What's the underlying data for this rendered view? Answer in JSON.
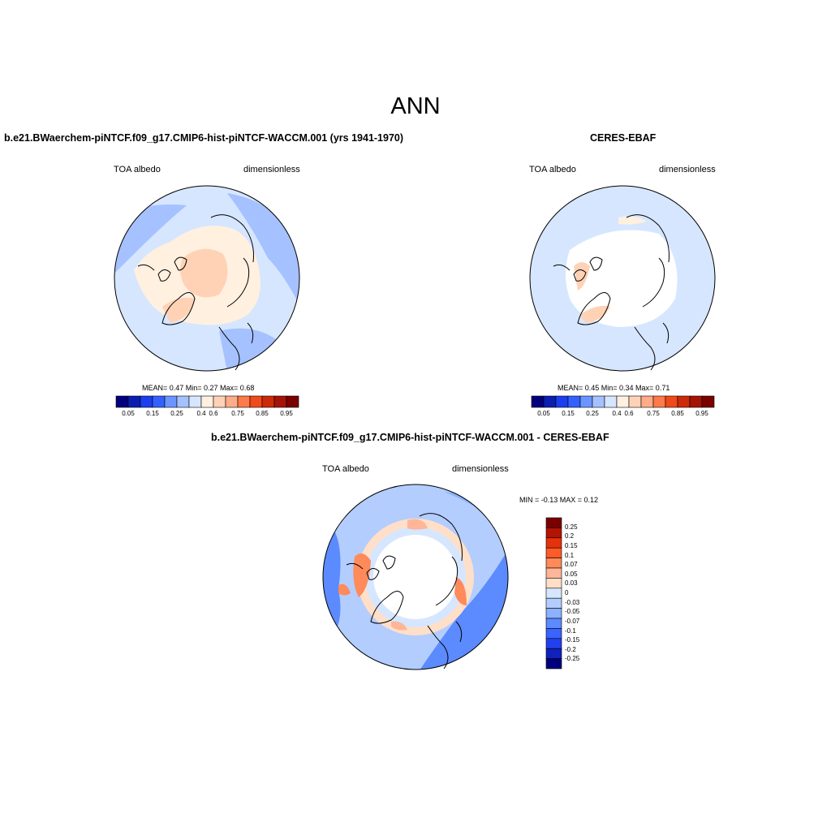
{
  "main_title": "ANN",
  "colors": {
    "abs_scale": [
      "#00007f",
      "#0a1fb0",
      "#1b3ff0",
      "#3361ff",
      "#6b95ff",
      "#a5c1ff",
      "#d6e6ff",
      "#fff0e0",
      "#ffd2b6",
      "#ffac88",
      "#ff7a4a",
      "#f04a1a",
      "#cc2a08",
      "#a51306",
      "#7a0000"
    ],
    "diff_scale": [
      "#7a0000",
      "#b31404",
      "#e6320a",
      "#ff5a28",
      "#ff8a5a",
      "#ffb598",
      "#ffdfc8",
      "#d6e6ff",
      "#b3cdff",
      "#8cb1ff",
      "#5c8aff",
      "#3a63ff",
      "#2240ee",
      "#0f22bb",
      "#00007f"
    ]
  },
  "panels": {
    "model": {
      "title": "b.e21.BWaerchem-piNTCF.f09_g17.CMIP6-hist-piNTCF-WACCM.001 (yrs 1941-1970)",
      "left_label": "TOA albedo",
      "right_label": "dimensionless",
      "stats": "MEAN=   0.47  Min=    0.27  Max=    0.68",
      "colorbar_ticks": [
        "0.05",
        "0.15",
        "0.25",
        "0.4",
        "0.6",
        "0.75",
        "0.85",
        "0.95"
      ]
    },
    "obs": {
      "title": "CERES-EBAF",
      "left_label": "TOA albedo",
      "right_label": "dimensionless",
      "stats": "MEAN=   0.45  Min=    0.34  Max=    0.71",
      "colorbar_ticks": [
        "0.05",
        "0.15",
        "0.25",
        "0.4",
        "0.6",
        "0.75",
        "0.85",
        "0.95"
      ]
    },
    "diff": {
      "title": "b.e21.BWaerchem-piNTCF.f09_g17.CMIP6-hist-piNTCF-WACCM.001 - CERES-EBAF",
      "left_label": "TOA albedo",
      "right_label": "dimensionless",
      "stats": "MIN =  -0.13 MAX =    0.12",
      "colorbar_ticks": [
        "0.25",
        "0.2",
        "0.15",
        "0.1",
        "0.07",
        "0.05",
        "0.03",
        "0",
        "-0.03",
        "-0.05",
        "-0.07",
        "-0.1",
        "-0.15",
        "-0.2",
        "-0.25"
      ]
    }
  }
}
